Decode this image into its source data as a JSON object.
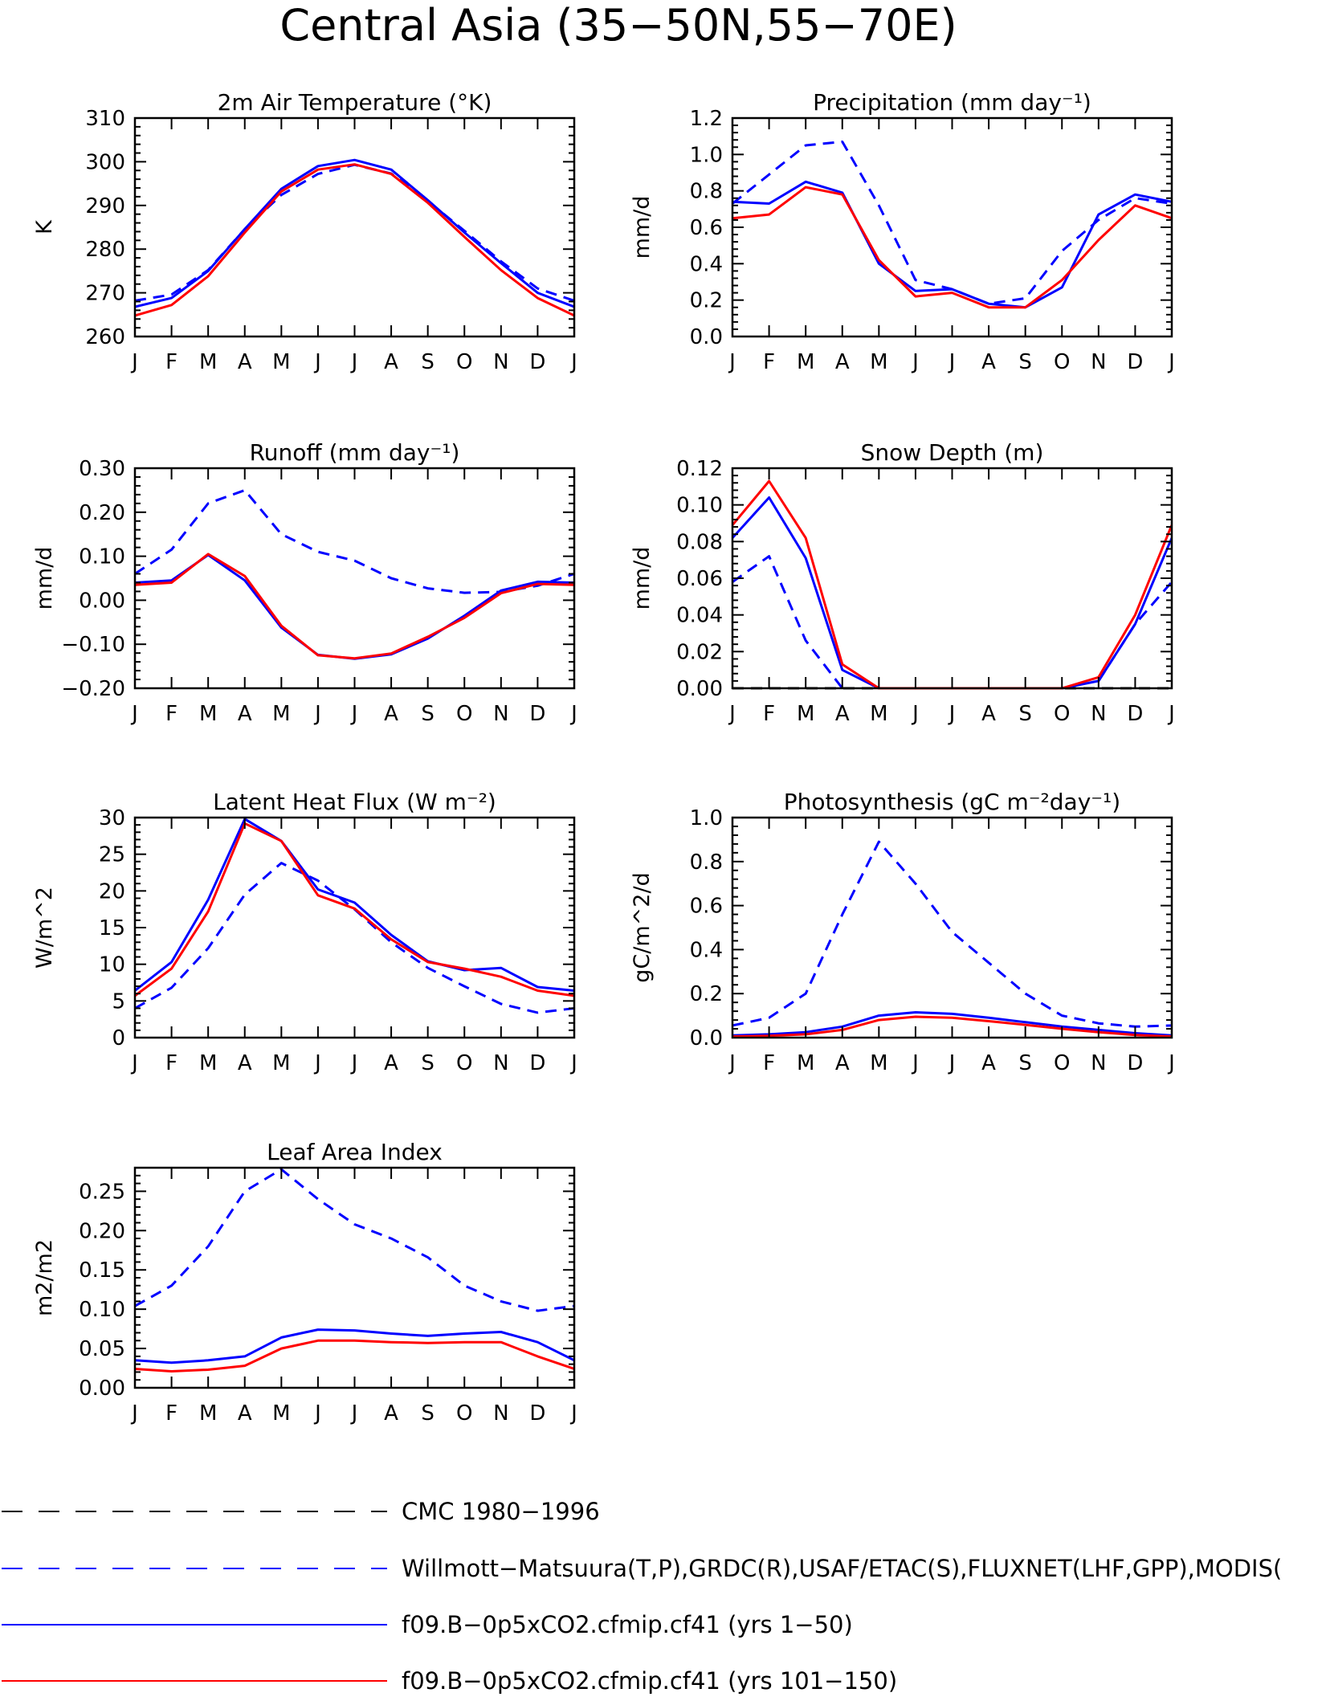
{
  "figure": {
    "title": "Central Asia (35−50N,55−70E)"
  },
  "legend": [
    {
      "label": "CMC 1980−1996",
      "color": "#000000",
      "dash": "dashed"
    },
    {
      "label": "Willmott−Matsuura(T,P),GRDC(R),USAF/ETAC(S),FLUXNET(LHF,GPP),MODIS(",
      "color": "#0000ff",
      "dash": "dashed"
    },
    {
      "label": "f09.B−0p5xCO2.cfmip.cf41 (yrs 1−50)",
      "color": "#0000ff",
      "dash": "solid"
    },
    {
      "label": "f09.B−0p5xCO2.cfmip.cf41 (yrs 101−150)",
      "color": "#ff0000",
      "dash": "solid"
    }
  ],
  "chart_data": [
    {
      "type": "line",
      "title": "2m Air Temperature (°K)",
      "ylabel": "K",
      "categories": [
        "J",
        "F",
        "M",
        "A",
        "M",
        "J",
        "J",
        "A",
        "S",
        "O",
        "N",
        "D",
        "J"
      ],
      "ylim": [
        260,
        310
      ],
      "yticks": [
        260,
        270,
        280,
        290,
        300,
        310
      ],
      "ytick_labels": [
        "260",
        "270",
        "280",
        "290",
        "300",
        "310"
      ],
      "series": [
        {
          "color": "#0000ff",
          "dash": "dashed",
          "values": [
            268.2,
            269.6,
            275.2,
            284.6,
            292.4,
            297.2,
            299.3,
            297.3,
            291.0,
            284.2,
            277.2,
            271.0,
            268.2
          ]
        },
        {
          "color": "#0000ff",
          "dash": "solid",
          "values": [
            266.8,
            268.8,
            275.0,
            284.6,
            293.8,
            299.0,
            300.4,
            298.2,
            291.2,
            283.8,
            276.8,
            270.0,
            266.8
          ]
        },
        {
          "color": "#ff0000",
          "dash": "solid",
          "values": [
            264.8,
            267.2,
            273.8,
            283.8,
            293.2,
            298.2,
            299.4,
            297.2,
            290.6,
            282.8,
            275.2,
            268.8,
            264.8
          ]
        }
      ]
    },
    {
      "type": "line",
      "title": "Precipitation (mm day⁻¹)",
      "ylabel": "mm/d",
      "categories": [
        "J",
        "F",
        "M",
        "A",
        "M",
        "J",
        "J",
        "A",
        "S",
        "O",
        "N",
        "D",
        "J"
      ],
      "ylim": [
        0,
        1.2
      ],
      "yticks": [
        0,
        0.2,
        0.4,
        0.6,
        0.8,
        1.0,
        1.2
      ],
      "ytick_labels": [
        "0.0",
        "0.2",
        "0.4",
        "0.6",
        "0.8",
        "1.0",
        "1.2"
      ],
      "series": [
        {
          "color": "#0000ff",
          "dash": "dashed",
          "values": [
            0.73,
            0.89,
            1.05,
            1.07,
            0.72,
            0.31,
            0.26,
            0.18,
            0.21,
            0.47,
            0.64,
            0.76,
            0.73
          ]
        },
        {
          "color": "#0000ff",
          "dash": "solid",
          "values": [
            0.74,
            0.73,
            0.85,
            0.79,
            0.4,
            0.25,
            0.26,
            0.18,
            0.16,
            0.27,
            0.67,
            0.78,
            0.74
          ]
        },
        {
          "color": "#ff0000",
          "dash": "solid",
          "values": [
            0.65,
            0.67,
            0.82,
            0.78,
            0.42,
            0.22,
            0.24,
            0.16,
            0.16,
            0.31,
            0.53,
            0.72,
            0.65
          ]
        }
      ]
    },
    {
      "type": "line",
      "title": "Runoff (mm day⁻¹)",
      "ylabel": "mm/d",
      "categories": [
        "J",
        "F",
        "M",
        "A",
        "M",
        "J",
        "J",
        "A",
        "S",
        "O",
        "N",
        "D",
        "J"
      ],
      "ylim": [
        -0.2,
        0.3
      ],
      "yticks": [
        -0.2,
        -0.1,
        0,
        0.1,
        0.2,
        0.3
      ],
      "ytick_labels": [
        "−0.20",
        "−0.10",
        "0.00",
        "0.10",
        "0.20",
        "0.30"
      ],
      "series": [
        {
          "color": "#0000ff",
          "dash": "dashed",
          "values": [
            0.06,
            0.115,
            0.22,
            0.25,
            0.15,
            0.11,
            0.09,
            0.05,
            0.027,
            0.017,
            0.019,
            0.033,
            0.06
          ]
        },
        {
          "color": "#0000ff",
          "dash": "solid",
          "values": [
            0.04,
            0.045,
            0.103,
            0.045,
            -0.062,
            -0.124,
            -0.133,
            -0.123,
            -0.087,
            -0.035,
            0.022,
            0.042,
            0.04
          ]
        },
        {
          "color": "#ff0000",
          "dash": "solid",
          "values": [
            0.035,
            0.04,
            0.105,
            0.055,
            -0.058,
            -0.125,
            -0.132,
            -0.121,
            -0.083,
            -0.04,
            0.016,
            0.037,
            0.035
          ]
        }
      ]
    },
    {
      "type": "line",
      "title": "Snow Depth (m)",
      "ylabel": "mm/d",
      "categories": [
        "J",
        "F",
        "M",
        "A",
        "M",
        "J",
        "J",
        "A",
        "S",
        "O",
        "N",
        "D",
        "J"
      ],
      "ylim": [
        0,
        0.12
      ],
      "yticks": [
        0,
        0.02,
        0.04,
        0.06,
        0.08,
        0.1,
        0.12
      ],
      "ytick_labels": [
        "0.00",
        "0.02",
        "0.04",
        "0.06",
        "0.08",
        "0.10",
        "0.12"
      ],
      "series": [
        {
          "color": "#000000",
          "dash": "dashed",
          "values": [
            0,
            0,
            0,
            0,
            0,
            0,
            0,
            0,
            0,
            0,
            0,
            0,
            0
          ]
        },
        {
          "color": "#0000ff",
          "dash": "dashed",
          "values": [
            0.058,
            0.072,
            0.026,
            0,
            null,
            null,
            null,
            null,
            null,
            null,
            0.004,
            0.035,
            0.058
          ]
        },
        {
          "color": "#0000ff",
          "dash": "solid",
          "values": [
            0.082,
            0.104,
            0.071,
            0.01,
            0,
            0,
            0,
            0,
            0,
            0,
            0.004,
            0.035,
            0.082
          ]
        },
        {
          "color": "#ff0000",
          "dash": "solid",
          "values": [
            0.089,
            0.113,
            0.082,
            0.013,
            0,
            0,
            0,
            0,
            0,
            0,
            0.006,
            0.04,
            0.089
          ]
        }
      ]
    },
    {
      "type": "line",
      "title": "Latent Heat Flux (W m⁻²)",
      "ylabel": "W/m^2",
      "categories": [
        "J",
        "F",
        "M",
        "A",
        "M",
        "J",
        "J",
        "A",
        "S",
        "O",
        "N",
        "D",
        "J"
      ],
      "ylim": [
        0,
        30
      ],
      "yticks": [
        0,
        5,
        10,
        15,
        20,
        25,
        30
      ],
      "ytick_labels": [
        "0",
        "5",
        "10",
        "15",
        "20",
        "25",
        "30"
      ],
      "series": [
        {
          "color": "#0000ff",
          "dash": "dashed",
          "values": [
            4.0,
            6.8,
            12.2,
            19.5,
            23.8,
            21.4,
            17.5,
            13.0,
            9.5,
            7.0,
            4.6,
            3.4,
            4.0
          ]
        },
        {
          "color": "#0000ff",
          "dash": "solid",
          "values": [
            6.4,
            10.3,
            18.8,
            29.8,
            26.8,
            20.2,
            18.4,
            14.0,
            10.4,
            9.2,
            9.5,
            6.9,
            6.4
          ]
        },
        {
          "color": "#ff0000",
          "dash": "solid",
          "values": [
            5.7,
            9.4,
            17.2,
            29.2,
            26.8,
            19.4,
            17.6,
            13.4,
            10.3,
            9.4,
            8.3,
            6.4,
            5.7
          ]
        }
      ]
    },
    {
      "type": "line",
      "title": "Photosynthesis (gC m⁻²day⁻¹)",
      "ylabel": "gC/m^2/d",
      "categories": [
        "J",
        "F",
        "M",
        "A",
        "M",
        "J",
        "J",
        "A",
        "S",
        "O",
        "N",
        "D",
        "J"
      ],
      "ylim": [
        0,
        1.0
      ],
      "yticks": [
        0,
        0.2,
        0.4,
        0.6,
        0.8,
        1.0
      ],
      "ytick_labels": [
        "0.0",
        "0.2",
        "0.4",
        "0.6",
        "0.8",
        "1.0"
      ],
      "series": [
        {
          "color": "#0000ff",
          "dash": "dashed",
          "values": [
            0.055,
            0.09,
            0.2,
            0.56,
            0.89,
            0.7,
            0.48,
            0.34,
            0.2,
            0.1,
            0.065,
            0.05,
            0.055
          ]
        },
        {
          "color": "#0000ff",
          "dash": "solid",
          "values": [
            0.01,
            0.015,
            0.025,
            0.05,
            0.1,
            0.115,
            0.108,
            0.09,
            0.07,
            0.05,
            0.035,
            0.02,
            0.01
          ]
        },
        {
          "color": "#ff0000",
          "dash": "solid",
          "values": [
            0.005,
            0.008,
            0.015,
            0.035,
            0.08,
            0.095,
            0.09,
            0.075,
            0.058,
            0.04,
            0.025,
            0.012,
            0.005
          ]
        }
      ]
    },
    {
      "type": "line",
      "title": "Leaf Area Index",
      "ylabel": "m2/m2",
      "categories": [
        "J",
        "F",
        "M",
        "A",
        "M",
        "J",
        "J",
        "A",
        "S",
        "O",
        "N",
        "D",
        "J"
      ],
      "ylim": [
        0,
        0.28
      ],
      "yticks": [
        0,
        0.05,
        0.1,
        0.15,
        0.2,
        0.25
      ],
      "ytick_labels": [
        "0.00",
        "0.05",
        "0.10",
        "0.15",
        "0.20",
        "0.25"
      ],
      "series": [
        {
          "color": "#0000ff",
          "dash": "dashed",
          "values": [
            0.104,
            0.13,
            0.18,
            0.25,
            0.278,
            0.24,
            0.208,
            0.19,
            0.166,
            0.13,
            0.11,
            0.098,
            0.104
          ]
        },
        {
          "color": "#0000ff",
          "dash": "solid",
          "values": [
            0.035,
            0.032,
            0.035,
            0.04,
            0.064,
            0.074,
            0.073,
            0.069,
            0.066,
            0.069,
            0.071,
            0.058,
            0.035
          ]
        },
        {
          "color": "#ff0000",
          "dash": "solid",
          "values": [
            0.024,
            0.021,
            0.023,
            0.028,
            0.05,
            0.06,
            0.06,
            0.058,
            0.057,
            0.058,
            0.058,
            0.04,
            0.024
          ]
        }
      ]
    }
  ]
}
